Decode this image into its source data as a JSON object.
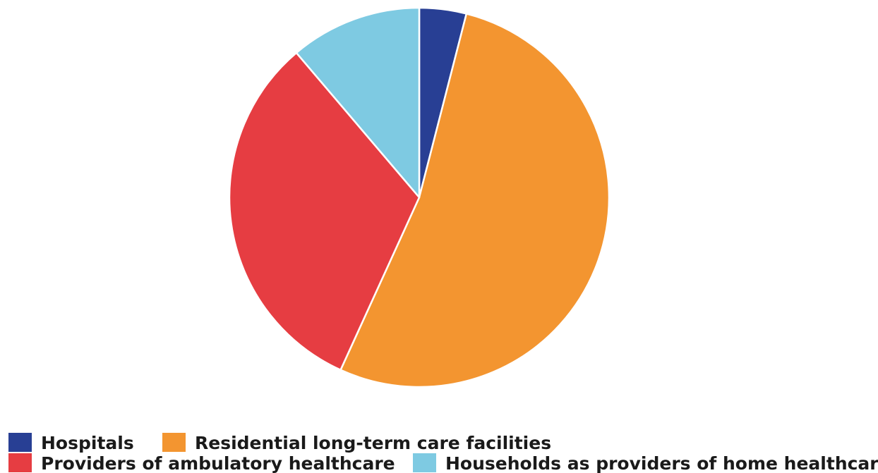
{
  "chart_data": {
    "type": "pie",
    "title": "",
    "categories": [
      "Hospitals",
      "Residential long-term care facilities",
      "Providers of ambulatory healthcare",
      "Households as providers of home healthcare"
    ],
    "values": [
      4.0,
      52.8,
      32.0,
      11.2
    ],
    "unit": "%",
    "colors": [
      "#283f94",
      "#f39530",
      "#e63d42",
      "#7ecae2"
    ],
    "start_angle": "12 o'clock",
    "direction": "clockwise",
    "legend_position": "bottom",
    "data_labels": false
  }
}
